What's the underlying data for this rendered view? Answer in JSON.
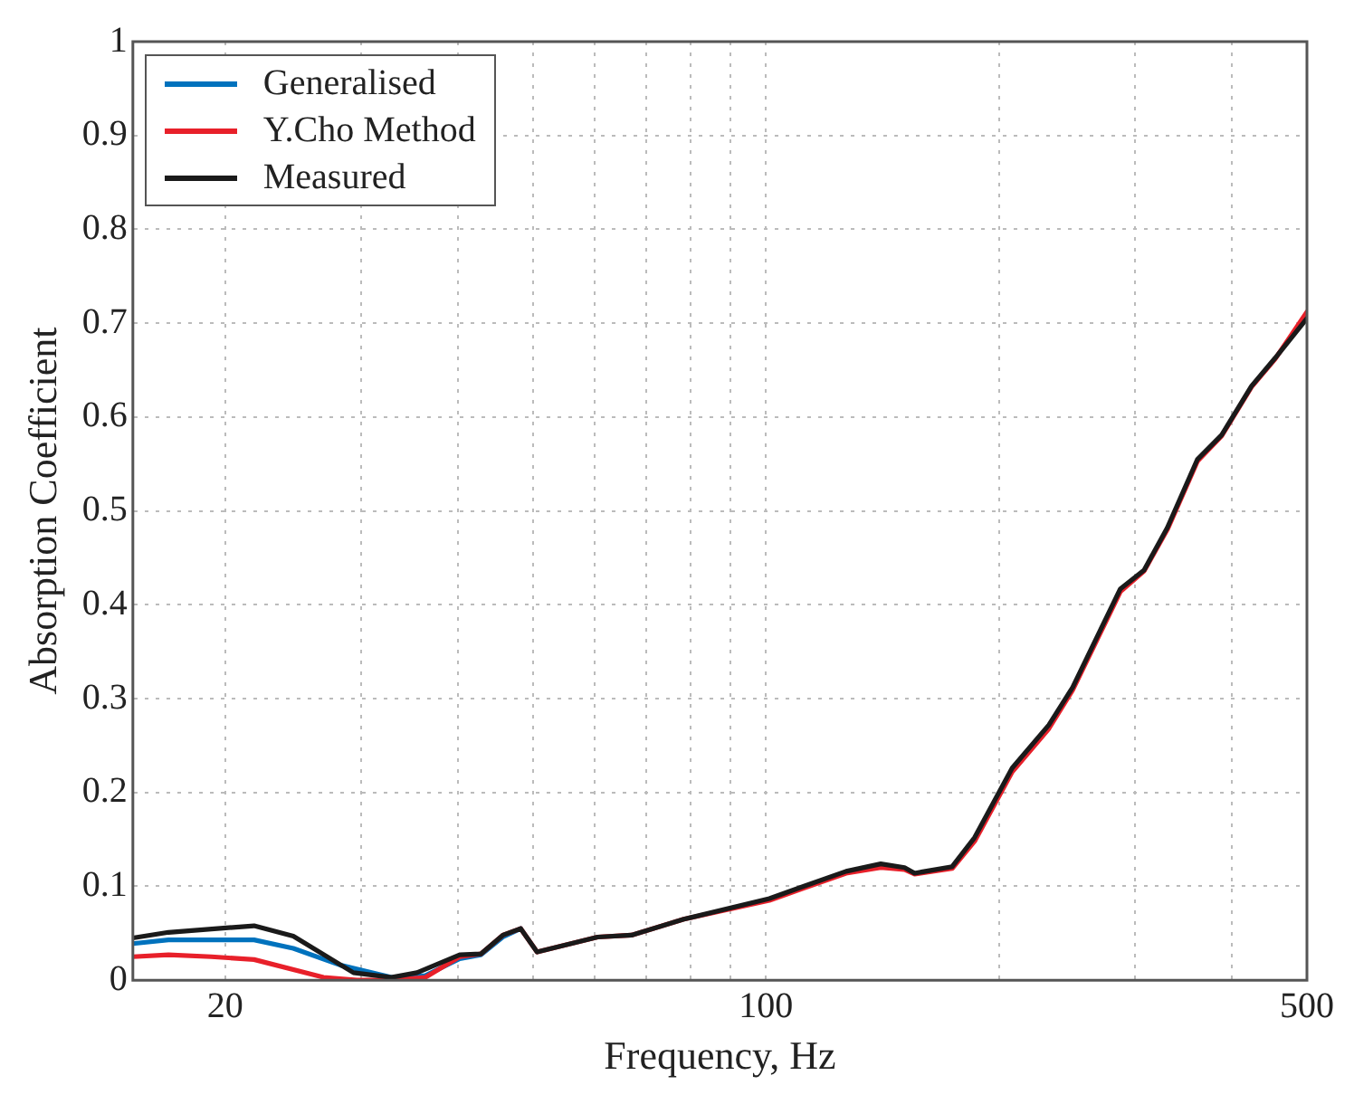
{
  "chart_data": {
    "type": "line",
    "xlabel": "Frequency, Hz",
    "ylabel": "Absorption Coefficient",
    "log": "x",
    "grid": true,
    "legend": "top left",
    "marker": "none",
    "line_style": "solid",
    "xlim": [
      15.2,
      500
    ],
    "xticks": [
      20,
      {
        "value": 30,
        "label": null
      },
      {
        "value": 40,
        "label": null
      },
      {
        "value": 50,
        "label": null
      },
      {
        "value": 60,
        "label": null
      },
      {
        "value": 70,
        "label": null
      },
      {
        "value": 80,
        "label": null
      },
      {
        "value": 90,
        "label": null
      },
      100,
      {
        "value": 200,
        "label": null
      },
      {
        "value": 300,
        "label": null
      },
      {
        "value": 400,
        "label": null
      },
      500
    ],
    "ylim": [
      0,
      1
    ],
    "yticks": [
      0,
      0.1,
      0.2,
      0.3,
      0.4,
      0.5,
      0.6,
      0.7,
      0.8,
      0.9,
      1
    ],
    "series": [
      {
        "name": "Generalised",
        "color": "#0072bd",
        "x": [
          15.2,
          16.9,
          21.8,
          24.5,
          28.2,
          32.8,
          36.3,
          40.2,
          42.8,
          45.7,
          48.2
        ],
        "values": [
          0.039,
          0.043,
          0.043,
          0.034,
          0.016,
          0.003,
          0.005,
          0.023,
          0.027,
          0.046,
          0.055
        ]
      },
      {
        "name": "Y.Cho Method",
        "color": "#e8202a",
        "x": [
          15.2,
          16.9,
          19.2,
          21.8,
          26.8,
          29.6,
          33,
          36.3,
          40.2,
          42.8,
          45.7,
          48.2,
          50.6,
          60.6,
          67,
          78.3,
          101,
          111.8,
          126.9,
          140.7,
          151,
          155.6,
          174,
          186,
          208,
          232,
          249,
          287,
          308,
          330,
          361,
          388,
          424,
          455,
          500
        ],
        "values": [
          0.025,
          0.027,
          0.025,
          0.022,
          0.003,
          0,
          0,
          0.003,
          0.025,
          0.028,
          0.048,
          0.055,
          0.03,
          0.046,
          0.048,
          0.065,
          0.085,
          0.098,
          0.114,
          0.12,
          0.118,
          0.113,
          0.119,
          0.148,
          0.222,
          0.268,
          0.309,
          0.414,
          0.436,
          0.48,
          0.553,
          0.58,
          0.632,
          0.662,
          0.712
        ]
      },
      {
        "name": "Measured",
        "color": "#1a1a1a",
        "x": [
          15.2,
          16.9,
          21.8,
          24.5,
          29.3,
          32.8,
          35.4,
          40.2,
          42.8,
          45.7,
          48.2,
          50.6,
          60.6,
          67,
          78.3,
          101,
          111.8,
          126.9,
          140.7,
          151,
          155.6,
          174,
          186,
          208,
          232,
          249,
          287,
          308,
          330,
          361,
          388,
          424,
          455,
          500
        ],
        "values": [
          0.045,
          0.051,
          0.058,
          0.047,
          0.008,
          0.003,
          0.008,
          0.027,
          0.028,
          0.048,
          0.055,
          0.03,
          0.046,
          0.048,
          0.065,
          0.087,
          0.1,
          0.116,
          0.124,
          0.12,
          0.114,
          0.121,
          0.152,
          0.226,
          0.272,
          0.312,
          0.417,
          0.437,
          0.482,
          0.555,
          0.581,
          0.633,
          0.663,
          0.705
        ]
      }
    ]
  }
}
